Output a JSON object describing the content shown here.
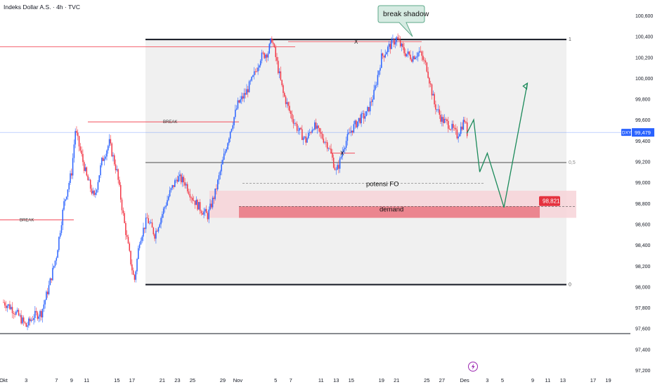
{
  "header": {
    "symbol_title": "Indeks Dollar A.S. · 4h · TVC"
  },
  "colors": {
    "up": "#2962ff",
    "down": "#f23645",
    "box_fill": "#f0f0f0",
    "zone_outer": "#f7d3d8",
    "zone_inner": "#e8707c",
    "price_tag": "#e5323f",
    "current_tag": "#2962ff",
    "projection": "#1b8a5a",
    "grid_mid": "#9e9e9e",
    "tooltip_fill": "#d6ebe2",
    "tooltip_border": "#5ea98a"
  },
  "annotations": {
    "break_shadow": "break shadow",
    "potensi_fo": "potensi FO",
    "demand": "demand",
    "break_1": "BREAK",
    "break_2": "BREAK",
    "x_top": "X",
    "x_mid": "X",
    "fib_1": "1",
    "fib_05": "0,5",
    "fib_0": "0"
  },
  "price_tags": {
    "demand_price": "98,821",
    "current_symbol": "DXY",
    "current_price": "99,479"
  },
  "event_icon": "lightning-icon",
  "chart_data": {
    "type": "candlestick",
    "title": "Indeks Dollar A.S. · 4h · TVC",
    "xlabel": "",
    "ylabel": "",
    "y_tick_labels": [
      "100,600",
      "100,400",
      "100,200",
      "100,000",
      "99,800",
      "99,600",
      "99,400",
      "99,200",
      "99,000",
      "98,800",
      "98,600",
      "98,400",
      "98,200",
      "98,000",
      "97,800",
      "97,600",
      "97,400",
      "97,200"
    ],
    "y_tick_values": [
      100.6,
      100.4,
      100.2,
      100.0,
      99.8,
      99.6,
      99.4,
      99.2,
      99.0,
      98.8,
      98.6,
      98.4,
      98.2,
      98.0,
      97.8,
      97.6,
      97.4,
      97.2
    ],
    "x_tick_labels": [
      "Okt",
      "3",
      "7",
      "9",
      "11",
      "15",
      "17",
      "21",
      "23",
      "25",
      "29",
      "Nov",
      "5",
      "7",
      "11",
      "13",
      "15",
      "19",
      "21",
      "25",
      "27",
      "Des",
      "3",
      "5",
      "9",
      "11",
      "13",
      "17",
      "19"
    ],
    "x_tick_days": [
      0,
      3,
      7,
      9,
      11,
      15,
      17,
      21,
      23,
      25,
      29,
      31,
      36,
      38,
      42,
      44,
      46,
      50,
      52,
      56,
      58,
      61,
      64,
      66,
      70,
      72,
      74,
      78,
      80
    ],
    "ylim": [
      97.2,
      100.6
    ],
    "grid": false,
    "current_price": 99.479,
    "fib_levels": {
      "1": 100.37,
      "0.5": 99.19,
      "0": 98.02
    },
    "demand_zone": [
      98.66,
      98.92
    ],
    "demand_inner": [
      98.66,
      98.77
    ],
    "potensi_fo_level": 98.99,
    "break_levels": [
      99.58,
      98.64
    ],
    "horizontal_lines": [
      100.3,
      97.55
    ],
    "projection_path": [
      [
        61.3,
        99.47
      ],
      [
        62.2,
        99.6
      ],
      [
        63.0,
        99.1
      ],
      [
        64.0,
        99.28
      ],
      [
        66.2,
        98.76
      ],
      [
        69.3,
        99.95
      ]
    ],
    "price_path": [
      [
        0,
        97.85
      ],
      [
        1,
        97.8
      ],
      [
        2,
        97.72
      ],
      [
        3,
        97.62
      ],
      [
        4,
        97.72
      ],
      [
        5,
        97.75
      ],
      [
        6,
        98.0
      ],
      [
        7,
        98.3
      ],
      [
        8,
        98.8
      ],
      [
        9,
        99.1
      ],
      [
        9.5,
        99.5
      ],
      [
        10,
        99.35
      ],
      [
        11,
        99.05
      ],
      [
        12,
        98.85
      ],
      [
        13,
        99.2
      ],
      [
        14,
        99.38
      ],
      [
        15,
        99.1
      ],
      [
        16,
        98.6
      ],
      [
        16.8,
        98.25
      ],
      [
        17.3,
        98.05
      ],
      [
        18,
        98.45
      ],
      [
        19,
        98.65
      ],
      [
        20,
        98.5
      ],
      [
        21,
        98.7
      ],
      [
        22,
        98.9
      ],
      [
        23,
        99.05
      ],
      [
        24,
        99.0
      ],
      [
        25,
        98.85
      ],
      [
        26,
        98.75
      ],
      [
        27,
        98.68
      ],
      [
        28,
        98.9
      ],
      [
        29,
        99.2
      ],
      [
        30,
        99.5
      ],
      [
        31,
        99.75
      ],
      [
        32,
        99.85
      ],
      [
        33,
        100.0
      ],
      [
        34,
        100.2
      ],
      [
        35,
        100.25
      ],
      [
        35.5,
        100.38
      ],
      [
        36,
        100.2
      ],
      [
        37,
        99.85
      ],
      [
        38,
        99.65
      ],
      [
        39,
        99.5
      ],
      [
        40,
        99.4
      ],
      [
        41,
        99.55
      ],
      [
        42,
        99.45
      ],
      [
        43,
        99.35
      ],
      [
        44,
        99.1
      ],
      [
        44.5,
        99.2
      ],
      [
        45,
        99.35
      ],
      [
        46,
        99.5
      ],
      [
        47,
        99.6
      ],
      [
        48,
        99.65
      ],
      [
        49,
        99.85
      ],
      [
        50,
        100.2
      ],
      [
        51,
        100.3
      ],
      [
        52,
        100.38
      ],
      [
        53,
        100.25
      ],
      [
        54,
        100.2
      ],
      [
        55,
        100.25
      ],
      [
        56,
        100.1
      ],
      [
        57,
        99.75
      ],
      [
        58,
        99.6
      ],
      [
        59,
        99.55
      ],
      [
        60,
        99.45
      ],
      [
        61,
        99.6
      ],
      [
        61.4,
        99.45
      ]
    ]
  }
}
